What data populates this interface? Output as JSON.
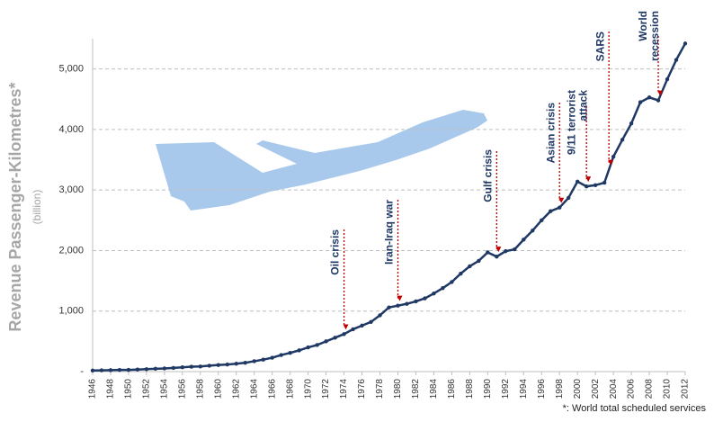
{
  "chart_data": {
    "type": "line",
    "y_label": "Revenue Passenger-Kilometres*",
    "y_unit": "(billion)",
    "footnote": "*: World total scheduled services",
    "x": [
      1946,
      1947,
      1948,
      1949,
      1950,
      1951,
      1952,
      1953,
      1954,
      1955,
      1956,
      1957,
      1958,
      1959,
      1960,
      1961,
      1962,
      1963,
      1964,
      1965,
      1966,
      1967,
      1968,
      1969,
      1970,
      1971,
      1972,
      1973,
      1974,
      1975,
      1976,
      1977,
      1978,
      1979,
      1980,
      1981,
      1982,
      1983,
      1984,
      1985,
      1986,
      1987,
      1988,
      1989,
      1990,
      1991,
      1992,
      1993,
      1994,
      1995,
      1996,
      1997,
      1998,
      1999,
      2000,
      2001,
      2002,
      2003,
      2004,
      2005,
      2006,
      2007,
      2008,
      2009,
      2010,
      2011,
      2012
    ],
    "series": [
      {
        "color": "#1f3864",
        "values": [
          18,
          21,
          24,
          27,
          28,
          34,
          40,
          47,
          52,
          61,
          71,
          81,
          85,
          98,
          109,
          117,
          130,
          146,
          172,
          198,
          229,
          274,
          309,
          351,
          400,
          440,
          500,
          560,
          620,
          700,
          760,
          820,
          930,
          1060,
          1090,
          1120,
          1160,
          1210,
          1290,
          1380,
          1480,
          1620,
          1740,
          1830,
          1970,
          1900,
          1990,
          2020,
          2180,
          2330,
          2500,
          2650,
          2710,
          2870,
          3140,
          3060,
          3080,
          3120,
          3550,
          3830,
          4100,
          4450,
          4530,
          4480,
          4830,
          5150,
          5420
        ]
      }
    ],
    "xlim": [
      1946,
      2012
    ],
    "xticks": [
      1946,
      1948,
      1950,
      1952,
      1954,
      1956,
      1958,
      1960,
      1962,
      1964,
      1966,
      1968,
      1970,
      1972,
      1974,
      1976,
      1978,
      1980,
      1982,
      1984,
      1986,
      1988,
      1990,
      1992,
      1994,
      1996,
      1998,
      2000,
      2002,
      2004,
      2006,
      2008,
      2010,
      2012
    ],
    "ylim": [
      0,
      5500
    ],
    "yticks": [
      {
        "value": 0,
        "label": "-"
      },
      {
        "value": 1000,
        "label": "1,000"
      },
      {
        "value": 2000,
        "label": "2,000"
      },
      {
        "value": 3000,
        "label": "3,000"
      },
      {
        "value": 4000,
        "label": "4,000"
      },
      {
        "value": 5000,
        "label": "5,000"
      }
    ],
    "grid": true,
    "annotations": [
      {
        "lines": [
          "Oil crisis"
        ],
        "x": 1974
      },
      {
        "lines": [
          "Iran-Iraq war"
        ],
        "x": 1980
      },
      {
        "lines": [
          "Gulf crisis"
        ],
        "x": 1991
      },
      {
        "lines": [
          "Asian crisis"
        ],
        "x": 1998
      },
      {
        "lines": [
          "9/11 terrorist",
          "attack"
        ],
        "x": 2001
      },
      {
        "lines": [
          "SARS"
        ],
        "x": 2003.5
      },
      {
        "lines": [
          "World",
          "recession"
        ],
        "x": 2009
      }
    ]
  }
}
